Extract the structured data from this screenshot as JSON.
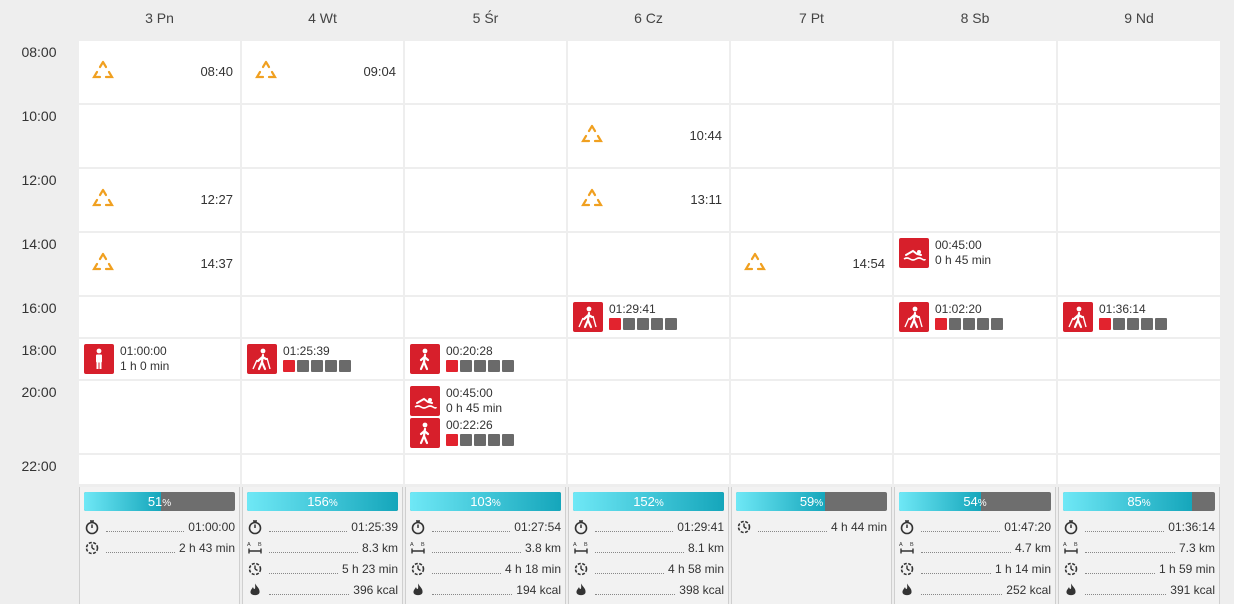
{
  "days": [
    {
      "label": "3 Pn"
    },
    {
      "label": "4 Wt"
    },
    {
      "label": "5 Śr"
    },
    {
      "label": "6 Cz"
    },
    {
      "label": "7 Pt"
    },
    {
      "label": "8 Sb"
    },
    {
      "label": "9 Nd"
    }
  ],
  "time_labels": [
    "08:00",
    "10:00",
    "12:00",
    "14:00",
    "16:00",
    "18:00",
    "20:00",
    "22:00"
  ],
  "reminders": [
    {
      "day": 0,
      "row": 0,
      "time": "08:40"
    },
    {
      "day": 1,
      "row": 0,
      "time": "09:04"
    },
    {
      "day": 3,
      "row": 1,
      "time": "10:44"
    },
    {
      "day": 0,
      "row": 2,
      "time": "12:27"
    },
    {
      "day": 3,
      "row": 2,
      "time": "13:11"
    },
    {
      "day": 0,
      "row": 3,
      "time": "14:37"
    },
    {
      "day": 4,
      "row": 3,
      "time": "14:54"
    }
  ],
  "activities": [
    {
      "day": 5,
      "slot": "r3",
      "icon": "swim-icon",
      "line1": "00:45:00",
      "line2": "0 h 45 min",
      "zones": null
    },
    {
      "day": 3,
      "slot": "r4",
      "icon": "walk-pole-icon",
      "line1": "01:29:41",
      "line2": "",
      "zones": 1
    },
    {
      "day": 5,
      "slot": "r4",
      "icon": "walk-pole-icon",
      "line1": "01:02:20",
      "line2": "",
      "zones": 1
    },
    {
      "day": 6,
      "slot": "r4",
      "icon": "walk-pole-icon",
      "line1": "01:36:14",
      "line2": "",
      "zones": 1
    },
    {
      "day": 0,
      "slot": "r5",
      "icon": "person-icon",
      "line1": "01:00:00",
      "line2": "1 h 0 min",
      "zones": null
    },
    {
      "day": 1,
      "slot": "r5",
      "icon": "walk-pole-icon",
      "line1": "01:25:39",
      "line2": "",
      "zones": 1
    },
    {
      "day": 2,
      "slot": "r5",
      "icon": "walk-icon",
      "line1": "00:20:28",
      "line2": "",
      "zones": 1
    },
    {
      "day": 2,
      "slot": "r6a",
      "icon": "swim-icon",
      "line1": "00:45:00",
      "line2": "0 h 45 min",
      "zones": null
    },
    {
      "day": 2,
      "slot": "r6b",
      "icon": "walk-icon",
      "line1": "00:22:26",
      "line2": "",
      "zones": 1
    }
  ],
  "summaries": [
    {
      "percent": "51",
      "fill": 0.51,
      "stats": [
        {
          "icon": "stopwatch-icon",
          "value": "01:00:00"
        },
        {
          "icon": "recovery-icon",
          "value": "2 h 43 min"
        }
      ]
    },
    {
      "percent": "156",
      "fill": 1.0,
      "stats": [
        {
          "icon": "stopwatch-icon",
          "value": "01:25:39"
        },
        {
          "icon": "distance-icon",
          "value": "8.3 km"
        },
        {
          "icon": "recovery-icon",
          "value": "5 h 23 min"
        },
        {
          "icon": "flame-icon",
          "value": "396 kcal"
        }
      ]
    },
    {
      "percent": "103",
      "fill": 1.0,
      "stats": [
        {
          "icon": "stopwatch-icon",
          "value": "01:27:54"
        },
        {
          "icon": "distance-icon",
          "value": "3.8 km"
        },
        {
          "icon": "recovery-icon",
          "value": "4 h 18 min"
        },
        {
          "icon": "flame-icon",
          "value": "194 kcal"
        }
      ]
    },
    {
      "percent": "152",
      "fill": 1.0,
      "stats": [
        {
          "icon": "stopwatch-icon",
          "value": "01:29:41"
        },
        {
          "icon": "distance-icon",
          "value": "8.1 km"
        },
        {
          "icon": "recovery-icon",
          "value": "4 h 58 min"
        },
        {
          "icon": "flame-icon",
          "value": "398 kcal"
        }
      ]
    },
    {
      "percent": "59",
      "fill": 0.59,
      "stats": [
        {
          "icon": "recovery-icon",
          "value": "4 h 44 min"
        }
      ]
    },
    {
      "percent": "54",
      "fill": 0.54,
      "stats": [
        {
          "icon": "stopwatch-icon",
          "value": "01:47:20"
        },
        {
          "icon": "distance-icon",
          "value": "4.7 km"
        },
        {
          "icon": "recovery-icon",
          "value": "1 h 14 min"
        },
        {
          "icon": "flame-icon",
          "value": "252 kcal"
        }
      ]
    },
    {
      "percent": "85",
      "fill": 0.85,
      "stats": [
        {
          "icon": "stopwatch-icon",
          "value": "01:36:14"
        },
        {
          "icon": "distance-icon",
          "value": "7.3 km"
        },
        {
          "icon": "recovery-icon",
          "value": "1 h 59 min"
        },
        {
          "icon": "flame-icon",
          "value": "391 kcal"
        }
      ]
    }
  ],
  "colors": {
    "reminder": "#f0a020",
    "activity": "#d71f2b",
    "zone_on": "#e2232e",
    "zone_off": "#6a6a6a",
    "bar_from": "#6fe8f6",
    "bar_to": "#15a6bb"
  }
}
